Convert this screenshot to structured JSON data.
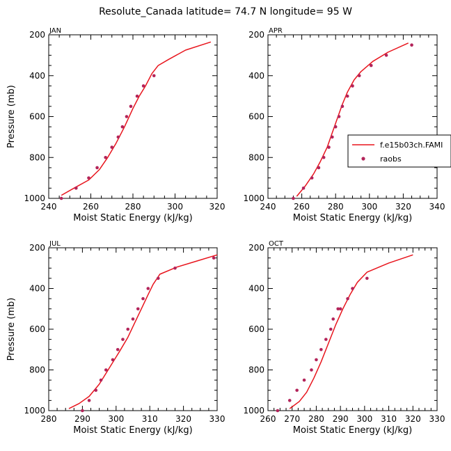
{
  "figure_title": "Resolute_Canada   latitude= 74.7 N longitude= 95 W",
  "colors": {
    "line": "#e8141c",
    "points": "#b3245a",
    "axes": "#000000"
  },
  "chart_data": [
    {
      "type": "line",
      "panel": "JAN",
      "xlabel": "Moist Static Energy (kJ/kg)",
      "ylabel": "Pressure (mb)",
      "xlim": [
        240,
        320
      ],
      "ylim": [
        200,
        1000
      ],
      "xticks": [
        240,
        260,
        280,
        300,
        320
      ],
      "yticks": [
        200,
        400,
        600,
        800,
        1000
      ],
      "series": [
        {
          "name": "f.e15b03ch.FAMI",
          "kind": "line",
          "x": [
            246,
            252,
            259,
            264,
            268,
            272,
            276,
            280,
            283,
            286,
            289,
            292,
            297,
            305,
            317
          ],
          "y": [
            985,
            950,
            910,
            860,
            800,
            730,
            650,
            560,
            500,
            450,
            390,
            350,
            320,
            275,
            235
          ]
        },
        {
          "name": "raobs",
          "kind": "scatter",
          "x": [
            246,
            253,
            259,
            263,
            267,
            270,
            273,
            275,
            277,
            279,
            282,
            285,
            290
          ],
          "y": [
            1000,
            950,
            900,
            850,
            800,
            750,
            700,
            650,
            600,
            550,
            500,
            450,
            400
          ]
        }
      ]
    },
    {
      "type": "line",
      "panel": "APR",
      "xlabel": "Moist Static Energy (kJ/kg)",
      "ylabel": "Pressure (mb)",
      "xlim": [
        240,
        340
      ],
      "ylim": [
        200,
        1000
      ],
      "xticks": [
        240,
        260,
        280,
        300,
        320,
        340
      ],
      "yticks": [
        200,
        400,
        600,
        800,
        1000
      ],
      "legend": {
        "placement": "right",
        "entries": [
          "f.e15b03ch.FAMI",
          "raobs"
        ]
      },
      "series": [
        {
          "name": "f.e15b03ch.FAMI",
          "kind": "line",
          "x": [
            257,
            262,
            267,
            271,
            275,
            278,
            281,
            284,
            287,
            291,
            295,
            302,
            311,
            323
          ],
          "y": [
            990,
            940,
            880,
            820,
            750,
            680,
            610,
            540,
            480,
            420,
            380,
            330,
            285,
            240
          ]
        },
        {
          "name": "raobs",
          "kind": "scatter",
          "x": [
            255,
            261,
            266,
            270,
            273,
            276,
            278,
            280,
            282,
            284,
            287,
            290,
            294,
            301,
            310,
            325
          ],
          "y": [
            1000,
            950,
            900,
            850,
            800,
            750,
            700,
            650,
            600,
            550,
            500,
            450,
            400,
            350,
            300,
            250
          ]
        }
      ]
    },
    {
      "type": "line",
      "panel": "JUL",
      "xlabel": "Moist Static Energy (kJ/kg)",
      "ylabel": "Pressure (mb)",
      "xlim": [
        280,
        330
      ],
      "ylim": [
        200,
        1000
      ],
      "xticks": [
        280,
        290,
        300,
        310,
        320,
        330
      ],
      "yticks": [
        200,
        400,
        600,
        800,
        1000
      ],
      "series": [
        {
          "name": "f.e15b03ch.FAMI",
          "kind": "line",
          "x": [
            286,
            289,
            292,
            295,
            298,
            301,
            303.5,
            305.5,
            307.5,
            309.5,
            311,
            313,
            318,
            324,
            330
          ],
          "y": [
            990,
            965,
            930,
            870,
            790,
            710,
            640,
            570,
            500,
            430,
            380,
            330,
            295,
            265,
            235
          ]
        },
        {
          "name": "raobs",
          "kind": "scatter",
          "x": [
            290,
            292,
            294,
            295.5,
            297,
            299,
            300.5,
            302,
            303.5,
            305,
            306.5,
            308,
            309.5,
            312.5,
            317.5,
            329
          ],
          "y": [
            1000,
            950,
            900,
            850,
            800,
            750,
            700,
            650,
            600,
            550,
            500,
            450,
            400,
            350,
            300,
            250
          ]
        }
      ]
    },
    {
      "type": "line",
      "panel": "OCT",
      "xlabel": "Moist Static Energy (kJ/kg)",
      "ylabel": "Pressure (mb)",
      "xlim": [
        260,
        330
      ],
      "ylim": [
        200,
        1000
      ],
      "xticks": [
        260,
        270,
        280,
        290,
        300,
        310,
        320,
        330
      ],
      "yticks": [
        200,
        400,
        600,
        800,
        1000
      ],
      "series": [
        {
          "name": "f.e15b03ch.FAMI",
          "kind": "line",
          "x": [
            269,
            273,
            276,
            279,
            282,
            285,
            288,
            291,
            294,
            297,
            301,
            310,
            320
          ],
          "y": [
            990,
            955,
            910,
            840,
            760,
            670,
            580,
            500,
            430,
            370,
            320,
            275,
            235
          ]
        },
        {
          "name": "raobs",
          "kind": "scatter",
          "x": [
            264,
            269,
            272,
            275,
            278,
            280,
            282,
            284,
            286,
            287,
            289,
            290,
            293,
            295,
            301
          ],
          "y": [
            1000,
            950,
            900,
            850,
            800,
            750,
            700,
            650,
            600,
            550,
            500,
            500,
            450,
            400,
            350
          ]
        }
      ]
    }
  ]
}
